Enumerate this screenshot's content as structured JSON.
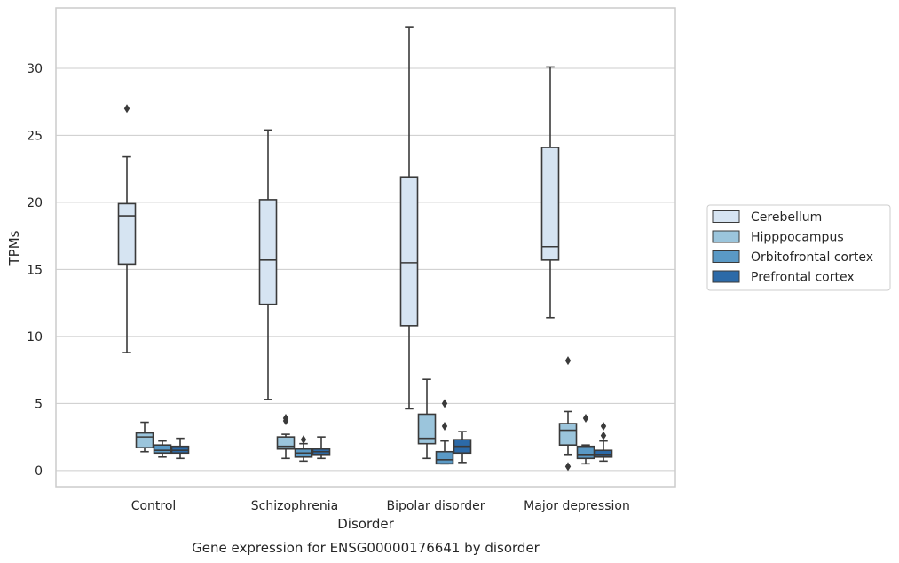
{
  "chart_data": {
    "type": "box",
    "caption": "Gene expression for ENSG00000176641 by disorder",
    "xlabel": "Disorder",
    "ylabel": "TPMs",
    "ylim": [
      -1.2,
      34.5
    ],
    "yticks": [
      0,
      5,
      10,
      15,
      20,
      25,
      30
    ],
    "grid": "horizontal",
    "legend_position": "right",
    "categories": [
      "Control",
      "Schizophrenia",
      "Bipolar disorder",
      "Major depression"
    ],
    "series": [
      {
        "name": "Cerebellum",
        "color": "#d6e4f2",
        "boxes": [
          {
            "whisker_low": 8.8,
            "q1": 15.4,
            "median": 19.0,
            "q3": 19.9,
            "whisker_high": 23.4,
            "outliers": [
              27.0
            ]
          },
          {
            "whisker_low": 5.3,
            "q1": 12.4,
            "median": 15.7,
            "q3": 20.2,
            "whisker_high": 25.4,
            "outliers": []
          },
          {
            "whisker_low": 4.6,
            "q1": 10.8,
            "median": 15.5,
            "q3": 21.9,
            "whisker_high": 33.1,
            "outliers": []
          },
          {
            "whisker_low": 11.4,
            "q1": 15.7,
            "median": 16.7,
            "q3": 24.1,
            "whisker_high": 30.1,
            "outliers": []
          }
        ]
      },
      {
        "name": "Hipppocampus",
        "color": "#9bc5dc",
        "boxes": [
          {
            "whisker_low": 1.4,
            "q1": 1.7,
            "median": 2.5,
            "q3": 2.8,
            "whisker_high": 3.6,
            "outliers": []
          },
          {
            "whisker_low": 0.9,
            "q1": 1.6,
            "median": 1.8,
            "q3": 2.5,
            "whisker_high": 2.7,
            "outliers": [
              3.7,
              3.9
            ]
          },
          {
            "whisker_low": 0.9,
            "q1": 2.0,
            "median": 2.4,
            "q3": 4.2,
            "whisker_high": 6.8,
            "outliers": []
          },
          {
            "whisker_low": 1.2,
            "q1": 1.9,
            "median": 3.0,
            "q3": 3.5,
            "whisker_high": 4.4,
            "outliers": [
              0.3,
              8.2
            ]
          }
        ]
      },
      {
        "name": "Orbitofrontal cortex",
        "color": "#5a99c5",
        "boxes": [
          {
            "whisker_low": 1.0,
            "q1": 1.3,
            "median": 1.5,
            "q3": 1.9,
            "whisker_high": 2.2,
            "outliers": []
          },
          {
            "whisker_low": 0.7,
            "q1": 1.0,
            "median": 1.3,
            "q3": 1.6,
            "whisker_high": 2.0,
            "outliers": [
              2.3
            ]
          },
          {
            "whisker_low": 0.5,
            "q1": 0.5,
            "median": 0.8,
            "q3": 1.4,
            "whisker_high": 2.2,
            "outliers": [
              3.3,
              5.0
            ]
          },
          {
            "whisker_low": 0.5,
            "q1": 0.9,
            "median": 1.2,
            "q3": 1.8,
            "whisker_high": 1.9,
            "outliers": [
              3.9
            ]
          }
        ]
      },
      {
        "name": "Prefrontal cortex",
        "color": "#2c6aa8",
        "boxes": [
          {
            "whisker_low": 0.9,
            "q1": 1.3,
            "median": 1.5,
            "q3": 1.8,
            "whisker_high": 2.4,
            "outliers": []
          },
          {
            "whisker_low": 0.9,
            "q1": 1.2,
            "median": 1.4,
            "q3": 1.6,
            "whisker_high": 2.5,
            "outliers": []
          },
          {
            "whisker_low": 0.6,
            "q1": 1.3,
            "median": 1.8,
            "q3": 2.3,
            "whisker_high": 2.9,
            "outliers": []
          },
          {
            "whisker_low": 0.7,
            "q1": 1.0,
            "median": 1.2,
            "q3": 1.5,
            "whisker_high": 2.2,
            "outliers": [
              2.6,
              3.3
            ]
          }
        ]
      }
    ]
  }
}
